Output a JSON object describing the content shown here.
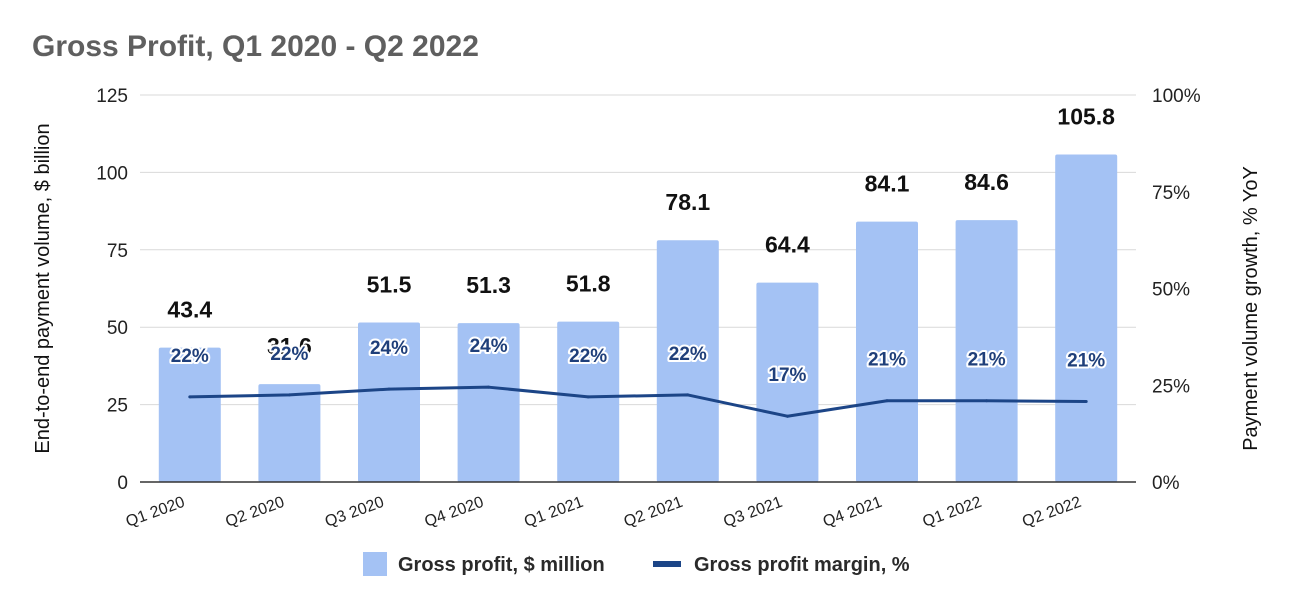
{
  "chart_data": {
    "type": "bar+line",
    "title": "Gross Profit, Q1 2020 - Q2 2022",
    "categories": [
      "Q1 2020",
      "Q2 2020",
      "Q3 2020",
      "Q4 2020",
      "Q1 2021",
      "Q2 2021",
      "Q3 2021",
      "Q4 2021",
      "Q1 2022",
      "Q2 2022"
    ],
    "series": [
      {
        "name": "Gross profit, $ million",
        "type": "bar",
        "axis": "left",
        "color": "#a4c2f4",
        "values": [
          43.4,
          31.6,
          51.5,
          51.3,
          51.8,
          78.1,
          64.4,
          84.1,
          84.6,
          105.8
        ],
        "labels": [
          "43.4",
          "31.6",
          "51.5",
          "51.3",
          "51.8",
          "78.1",
          "64.4",
          "84.1",
          "84.6",
          "105.8"
        ]
      },
      {
        "name": "Gross profit margin, %",
        "type": "line",
        "axis": "right",
        "color": "#1c4587",
        "values": [
          22,
          22.5,
          24,
          24.5,
          22,
          22.5,
          17,
          21,
          21,
          20.8
        ],
        "labels": [
          "22%",
          "22%",
          "24%",
          "24%",
          "22%",
          "22%",
          "17%",
          "21%",
          "21%",
          "21%"
        ]
      }
    ],
    "y_left": {
      "label": "End-to-end payment volume, $ billion",
      "range": [
        0,
        125
      ],
      "ticks": [
        "0",
        "25",
        "50",
        "75",
        "100",
        "125"
      ]
    },
    "y_right": {
      "label": "Payment volume growth, % YoY",
      "range": [
        0,
        100
      ],
      "ticks": [
        "0%",
        "25%",
        "50%",
        "75%",
        "100%"
      ]
    },
    "grid": true,
    "legend_position": "bottom"
  }
}
